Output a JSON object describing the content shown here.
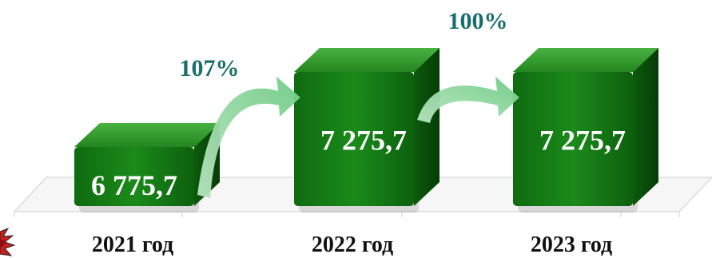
{
  "chart_data": {
    "type": "bar",
    "categories": [
      "2021 год",
      "2022 год",
      "2023 год"
    ],
    "values": [
      6775.7,
      7275.7,
      7275.7
    ],
    "data_labels": [
      "6 775,7",
      "7 275,7",
      "7 275,7"
    ],
    "growth": [
      {
        "from": 0,
        "to": 1,
        "label": "107%"
      },
      {
        "from": 1,
        "to": 2,
        "label": "100%"
      }
    ],
    "colors": {
      "bar_front": "#117711",
      "bar_top": "#2f9a2a",
      "bar_side": "#0a4f0a",
      "arrow": "#7dd08f",
      "percent_text": "#1a6e6e"
    }
  }
}
